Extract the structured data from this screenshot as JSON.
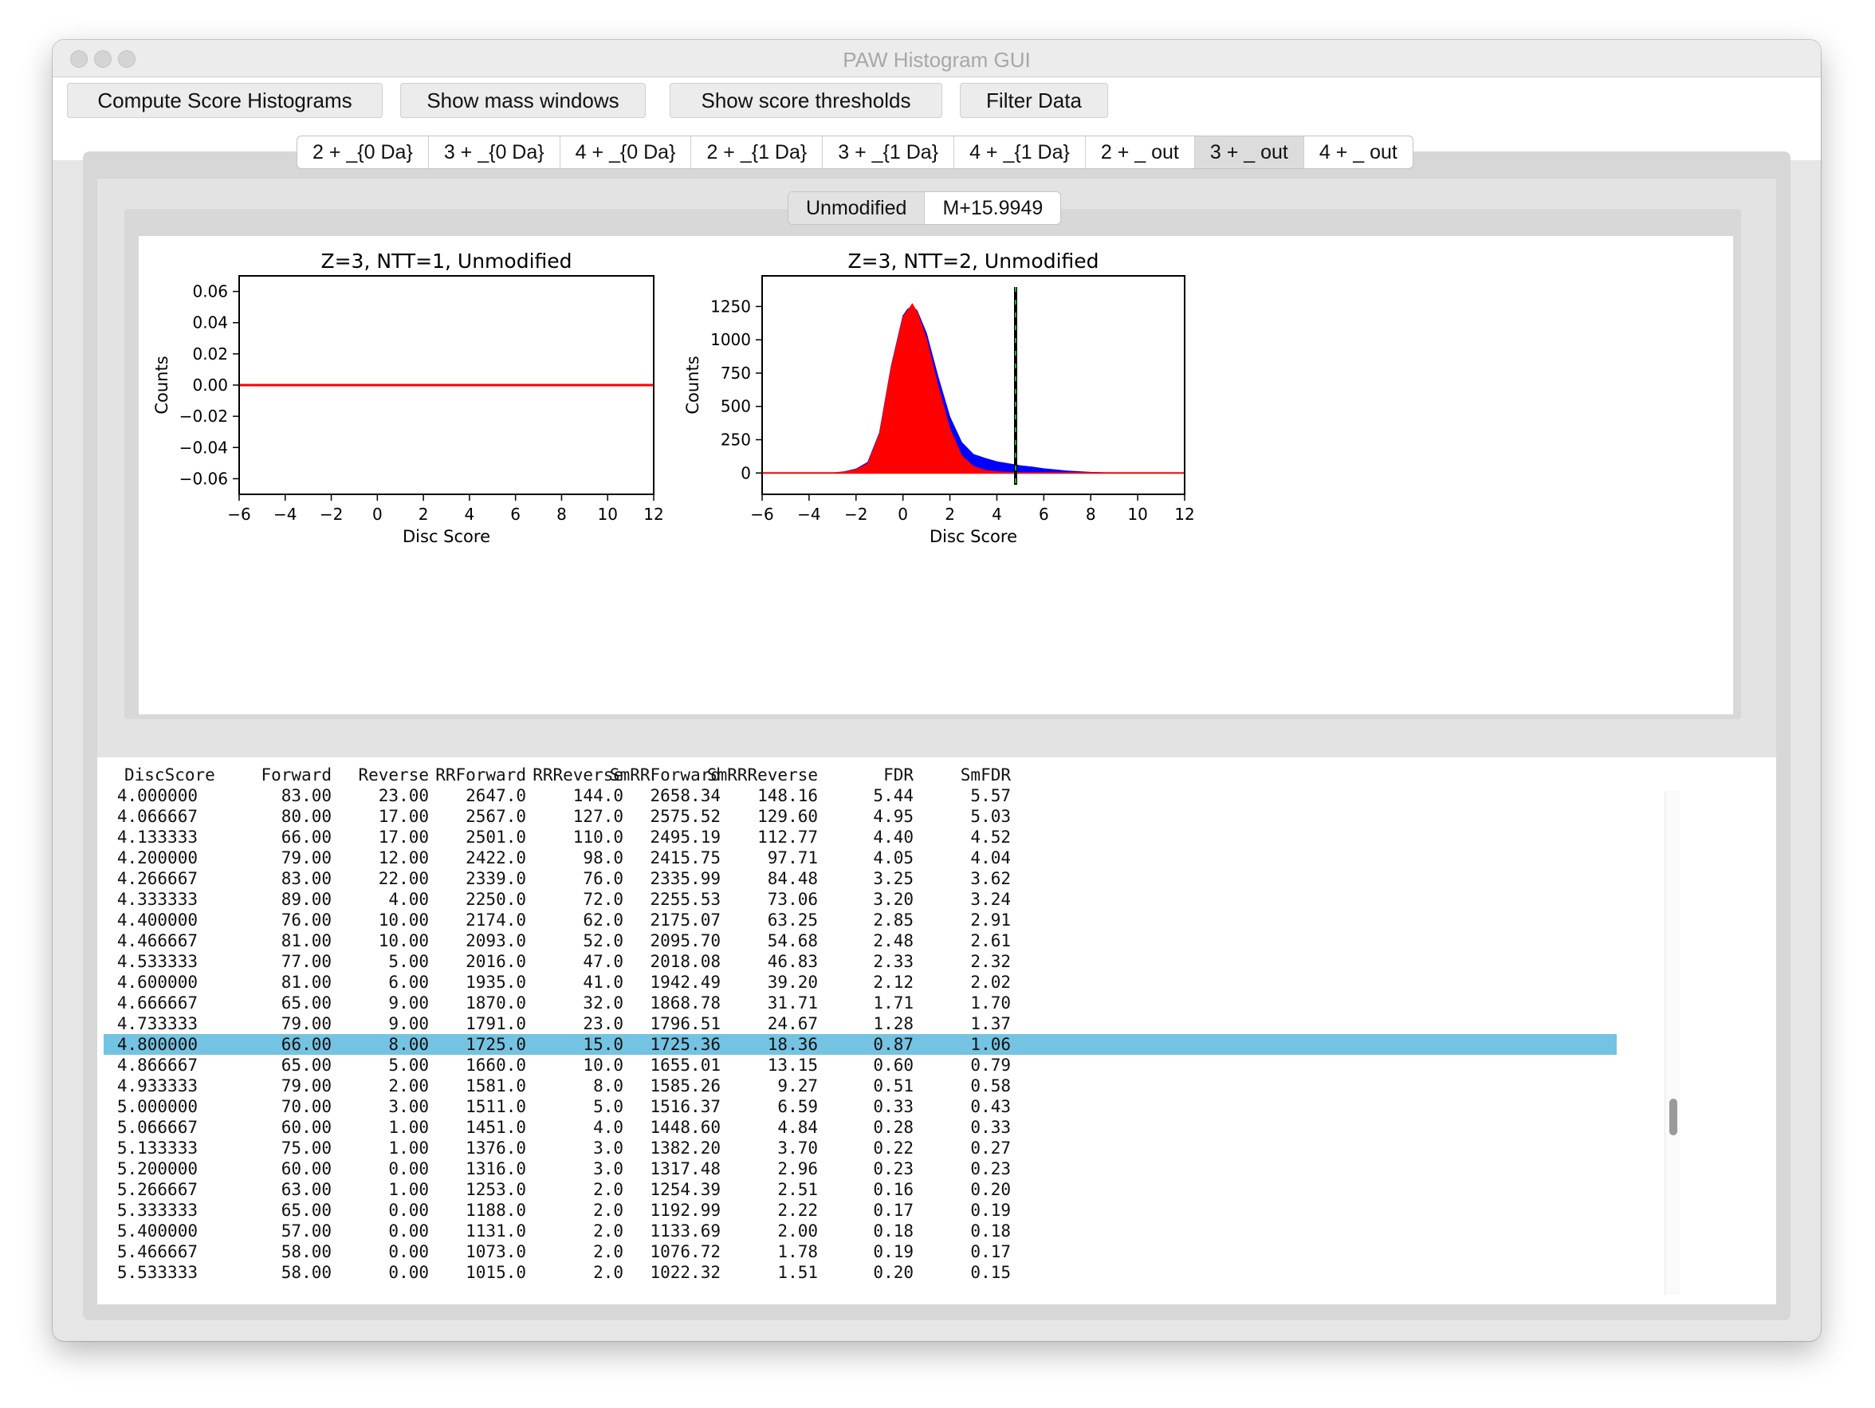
{
  "window": {
    "title": "PAW Histogram GUI"
  },
  "toolbar": {
    "compute": "Compute Score Histograms",
    "mass": "Show mass windows",
    "thresholds": "Show score thresholds",
    "filter": "Filter Data"
  },
  "tabs": [
    "2 + _{0 Da}",
    "3 + _{0 Da}",
    "4 + _{0 Da}",
    "2 + _{1 Da}",
    "3 + _{1 Da}",
    "4 + _{1 Da}",
    "2 + _ out",
    "3 + _ out",
    "4 + _ out"
  ],
  "active_tab": 7,
  "subtabs": [
    "Unmodified",
    "M+15.9949"
  ],
  "active_subtab": 0,
  "colors": {
    "forward": "#0000ff",
    "reverse": "#ff0000",
    "threshold": "#000000",
    "selection": "#74c3e2"
  },
  "chart_data": [
    {
      "type": "line",
      "title": "Z=3, NTT=1, Unmodified",
      "xlabel": "Disc Score",
      "ylabel": "Counts",
      "xlim": [
        -6,
        12
      ],
      "ylim": [
        -0.07,
        0.07
      ],
      "xticks": [
        "−6",
        "−4",
        "−2",
        "0",
        "2",
        "4",
        "6",
        "8",
        "10",
        "12"
      ],
      "yticks": [
        "0.06",
        "0.04",
        "0.02",
        "0.00",
        "−0.02",
        "−0.04",
        "−0.06"
      ],
      "series": [
        {
          "x": [
            -6,
            12
          ],
          "values": [
            0,
            0
          ]
        },
        {
          "x": [
            -6,
            12
          ],
          "values": [
            0,
            0
          ]
        }
      ],
      "grid": false
    },
    {
      "type": "area",
      "title": "Z=3, NTT=2, Unmodified",
      "xlabel": "Disc Score",
      "ylabel": "Counts",
      "xlim": [
        -6,
        12
      ],
      "ylim": [
        -160,
        1480
      ],
      "xticks": [
        "−6",
        "−4",
        "−2",
        "0",
        "2",
        "4",
        "6",
        "8",
        "10",
        "12"
      ],
      "yticks": [
        "1250",
        "1000",
        "750",
        "500",
        "250",
        "0"
      ],
      "x": [
        -6,
        -3,
        -2.5,
        -2,
        -1.5,
        -1,
        -0.5,
        0,
        0.2,
        0.4,
        0.6,
        1,
        1.5,
        2,
        2.5,
        3,
        3.5,
        4,
        4.5,
        5,
        5.5,
        6,
        7,
        8,
        9,
        12
      ],
      "series": [
        {
          "values": [
            0,
            0,
            10,
            30,
            80,
            300,
            800,
            1180,
            1230,
            1250,
            1220,
            1050,
            720,
            420,
            230,
            140,
            110,
            85,
            70,
            55,
            45,
            32,
            15,
            5,
            0,
            0
          ]
        },
        {
          "values": [
            0,
            0,
            8,
            25,
            70,
            290,
            790,
            1170,
            1220,
            1270,
            1210,
            1010,
            650,
            330,
            130,
            50,
            20,
            10,
            5,
            2,
            1,
            0,
            0,
            0,
            0,
            0
          ]
        }
      ],
      "threshold_x": 4.8,
      "grid": false
    }
  ],
  "table": {
    "headers": [
      "DiscScore",
      "Forward",
      "Reverse",
      "RRForward",
      "RRReverse",
      "SmRRForward",
      "SmRRReverse",
      "FDR",
      "SmFDR"
    ],
    "selected_row": 12,
    "rows": [
      [
        "4.000000",
        "83.00",
        "23.00",
        "2647.0",
        "144.0",
        "2658.34",
        "148.16",
        "5.44",
        "5.57"
      ],
      [
        "4.066667",
        "80.00",
        "17.00",
        "2567.0",
        "127.0",
        "2575.52",
        "129.60",
        "4.95",
        "5.03"
      ],
      [
        "4.133333",
        "66.00",
        "17.00",
        "2501.0",
        "110.0",
        "2495.19",
        "112.77",
        "4.40",
        "4.52"
      ],
      [
        "4.200000",
        "79.00",
        "12.00",
        "2422.0",
        "98.0",
        "2415.75",
        "97.71",
        "4.05",
        "4.04"
      ],
      [
        "4.266667",
        "83.00",
        "22.00",
        "2339.0",
        "76.0",
        "2335.99",
        "84.48",
        "3.25",
        "3.62"
      ],
      [
        "4.333333",
        "89.00",
        "4.00",
        "2250.0",
        "72.0",
        "2255.53",
        "73.06",
        "3.20",
        "3.24"
      ],
      [
        "4.400000",
        "76.00",
        "10.00",
        "2174.0",
        "62.0",
        "2175.07",
        "63.25",
        "2.85",
        "2.91"
      ],
      [
        "4.466667",
        "81.00",
        "10.00",
        "2093.0",
        "52.0",
        "2095.70",
        "54.68",
        "2.48",
        "2.61"
      ],
      [
        "4.533333",
        "77.00",
        "5.00",
        "2016.0",
        "47.0",
        "2018.08",
        "46.83",
        "2.33",
        "2.32"
      ],
      [
        "4.600000",
        "81.00",
        "6.00",
        "1935.0",
        "41.0",
        "1942.49",
        "39.20",
        "2.12",
        "2.02"
      ],
      [
        "4.666667",
        "65.00",
        "9.00",
        "1870.0",
        "32.0",
        "1868.78",
        "31.71",
        "1.71",
        "1.70"
      ],
      [
        "4.733333",
        "79.00",
        "9.00",
        "1791.0",
        "23.0",
        "1796.51",
        "24.67",
        "1.28",
        "1.37"
      ],
      [
        "4.800000",
        "66.00",
        "8.00",
        "1725.0",
        "15.0",
        "1725.36",
        "18.36",
        "0.87",
        "1.06"
      ],
      [
        "4.866667",
        "65.00",
        "5.00",
        "1660.0",
        "10.0",
        "1655.01",
        "13.15",
        "0.60",
        "0.79"
      ],
      [
        "4.933333",
        "79.00",
        "2.00",
        "1581.0",
        "8.0",
        "1585.26",
        "9.27",
        "0.51",
        "0.58"
      ],
      [
        "5.000000",
        "70.00",
        "3.00",
        "1511.0",
        "5.0",
        "1516.37",
        "6.59",
        "0.33",
        "0.43"
      ],
      [
        "5.066667",
        "60.00",
        "1.00",
        "1451.0",
        "4.0",
        "1448.60",
        "4.84",
        "0.28",
        "0.33"
      ],
      [
        "5.133333",
        "75.00",
        "1.00",
        "1376.0",
        "3.0",
        "1382.20",
        "3.70",
        "0.22",
        "0.27"
      ],
      [
        "5.200000",
        "60.00",
        "0.00",
        "1316.0",
        "3.0",
        "1317.48",
        "2.96",
        "0.23",
        "0.23"
      ],
      [
        "5.266667",
        "63.00",
        "1.00",
        "1253.0",
        "2.0",
        "1254.39",
        "2.51",
        "0.16",
        "0.20"
      ],
      [
        "5.333333",
        "65.00",
        "0.00",
        "1188.0",
        "2.0",
        "1192.99",
        "2.22",
        "0.17",
        "0.19"
      ],
      [
        "5.400000",
        "57.00",
        "0.00",
        "1131.0",
        "2.0",
        "1133.69",
        "2.00",
        "0.18",
        "0.18"
      ],
      [
        "5.466667",
        "58.00",
        "0.00",
        "1073.0",
        "2.0",
        "1076.72",
        "1.78",
        "0.19",
        "0.17"
      ],
      [
        "5.533333",
        "58.00",
        "0.00",
        "1015.0",
        "2.0",
        "1022.32",
        "1.51",
        "0.20",
        "0.15"
      ]
    ]
  }
}
